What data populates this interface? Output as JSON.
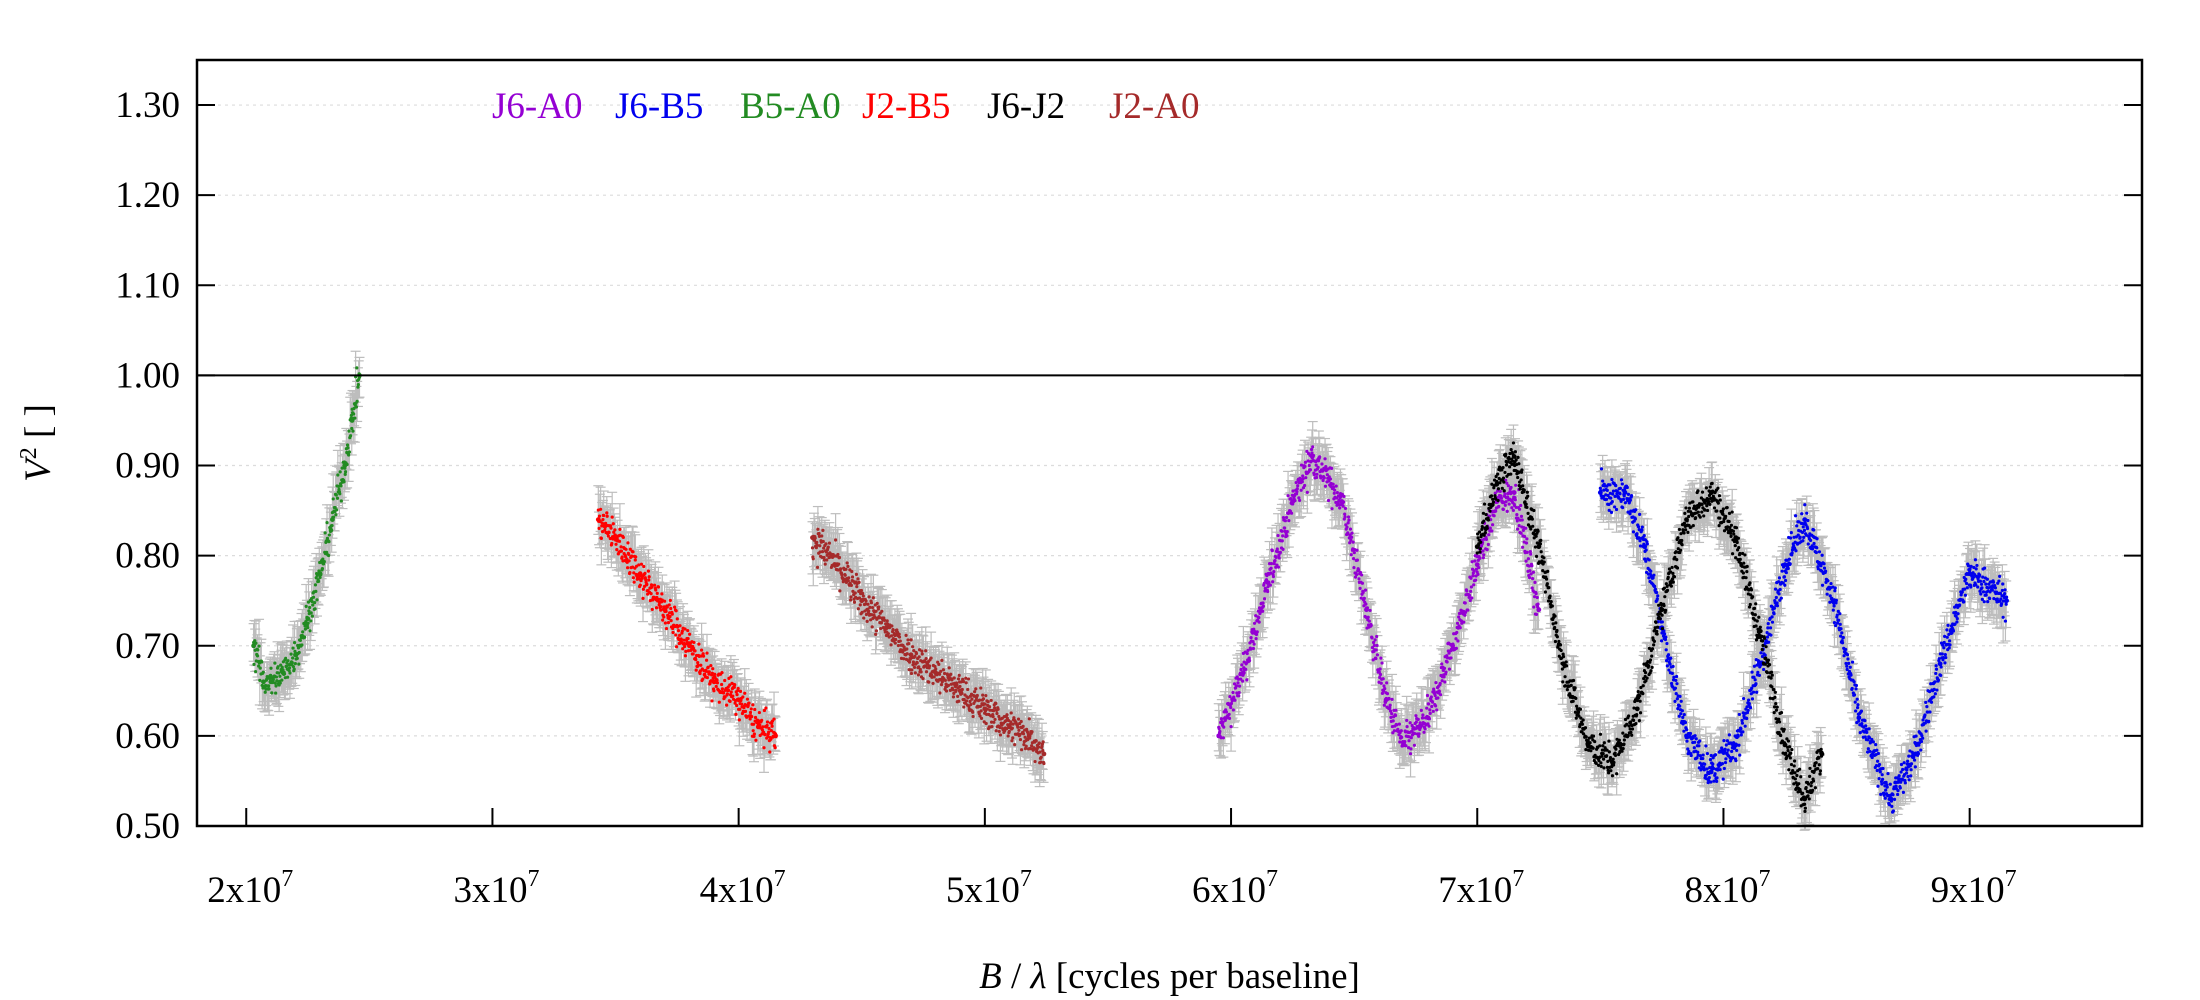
{
  "chart_data": {
    "type": "scatter",
    "title": "",
    "xlabel": "B / λ [cycles per baseline]",
    "xlabel_parts": {
      "b": "B",
      "slash": " / ",
      "lambda": "λ",
      "rest": " [cycles per baseline]"
    },
    "ylabel": "V² [ ]",
    "ylabel_parts": {
      "v": "V",
      "sup": "2",
      "rest": " [ ]"
    },
    "xlim": [
      18000000,
      97000000
    ],
    "ylim": [
      0.5,
      1.35
    ],
    "x_ticks": [
      20000000,
      30000000,
      40000000,
      50000000,
      60000000,
      70000000,
      80000000,
      90000000
    ],
    "x_tick_labels": [
      {
        "base": "2x10",
        "exp": "7"
      },
      {
        "base": "3x10",
        "exp": "7"
      },
      {
        "base": "4x10",
        "exp": "7"
      },
      {
        "base": "5x10",
        "exp": "7"
      },
      {
        "base": "6x10",
        "exp": "7"
      },
      {
        "base": "7x10",
        "exp": "7"
      },
      {
        "base": "8x10",
        "exp": "7"
      },
      {
        "base": "9x10",
        "exp": "7"
      }
    ],
    "y_ticks": [
      0.5,
      0.6,
      0.7,
      0.8,
      0.9,
      1.0,
      1.1,
      1.2,
      1.3
    ],
    "y_tick_labels": [
      "0.50",
      "0.60",
      "0.70",
      "0.80",
      "0.90",
      "1.00",
      "1.10",
      "1.20",
      "1.30"
    ],
    "reference_line_y": 1.0,
    "grid": true,
    "legend_position": "top-left",
    "error_bar_color": "#bdbdbd",
    "series": [
      {
        "name": "J6-A0",
        "color": "#9400d3",
        "x": [
          59500000,
          60500000,
          61500000,
          62500000,
          63300000,
          64500000,
          65500000,
          66300000,
          67000000,
          68000000,
          69000000,
          70000000,
          70800000,
          71500000,
          72500000
        ],
        "y": [
          0.6,
          0.67,
          0.77,
          0.86,
          0.91,
          0.86,
          0.74,
          0.64,
          0.59,
          0.62,
          0.7,
          0.79,
          0.86,
          0.87,
          0.74
        ]
      },
      {
        "name": "J6-B5",
        "color": "#0000ee",
        "x": [
          75000000,
          76000000,
          76800000,
          77500000,
          78500000,
          79500000,
          80500000,
          81500000,
          82500000,
          83300000,
          84500000,
          85500000,
          86800000,
          87800000,
          88800000,
          90000000,
          91500000
        ],
        "y": [
          0.87,
          0.87,
          0.81,
          0.72,
          0.6,
          0.56,
          0.59,
          0.68,
          0.79,
          0.84,
          0.75,
          0.62,
          0.53,
          0.58,
          0.68,
          0.78,
          0.75
        ]
      },
      {
        "name": "B5-A0",
        "color": "#228b22",
        "x": [
          20300000,
          20700000,
          21000000,
          21500000,
          22000000,
          22500000,
          23000000,
          23500000,
          24000000,
          24300000,
          24600000
        ],
        "y": [
          0.7,
          0.66,
          0.66,
          0.67,
          0.69,
          0.73,
          0.78,
          0.84,
          0.9,
          0.95,
          1.0
        ]
      },
      {
        "name": "J2-B5",
        "color": "#ff0000",
        "x": [
          34300000,
          35000000,
          36000000,
          37000000,
          38000000,
          39000000,
          40000000,
          40800000,
          41500000
        ],
        "y": [
          0.84,
          0.82,
          0.78,
          0.74,
          0.7,
          0.66,
          0.64,
          0.61,
          0.6
        ]
      },
      {
        "name": "J6-J2",
        "color": "#000000",
        "x": [
          70000000,
          70800000,
          71500000,
          72500000,
          73500000,
          74500000,
          75500000,
          76500000,
          77500000,
          78500000,
          79500000,
          80500000,
          81500000,
          82500000,
          83300000,
          84000000
        ],
        "y": [
          0.81,
          0.88,
          0.91,
          0.81,
          0.68,
          0.59,
          0.57,
          0.63,
          0.74,
          0.84,
          0.87,
          0.82,
          0.71,
          0.59,
          0.53,
          0.58
        ]
      },
      {
        "name": "J2-A0",
        "color": "#a52a2a",
        "x": [
          43000000,
          44000000,
          45000000,
          46000000,
          47000000,
          48000000,
          49000000,
          50000000,
          51000000,
          51800000,
          52400000
        ],
        "y": [
          0.82,
          0.79,
          0.75,
          0.72,
          0.69,
          0.67,
          0.65,
          0.63,
          0.61,
          0.6,
          0.58
        ]
      }
    ]
  }
}
